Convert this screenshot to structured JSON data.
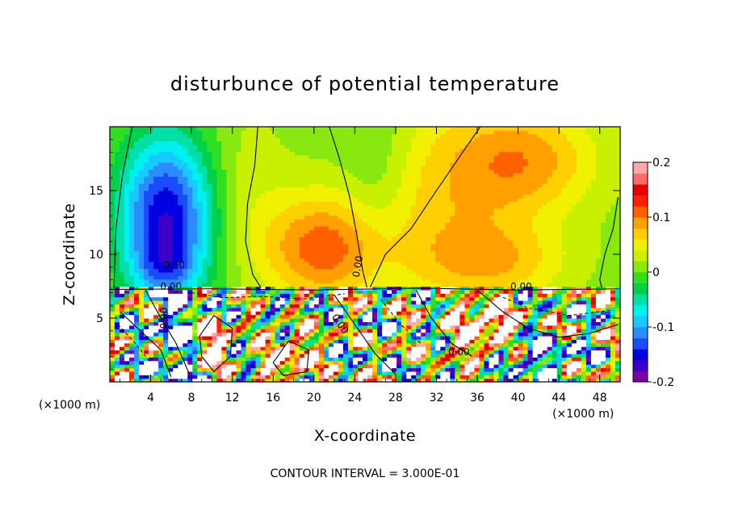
{
  "chart_data": {
    "type": "heatmap",
    "title": "disturbunce of potential temperature",
    "xlabel": "X-coordinate",
    "ylabel": "Z-coordinate",
    "x_unit_note": "(×1000 m)",
    "x_unit_note_right": "(×1000 m)",
    "xlim": [
      0,
      50
    ],
    "ylim": [
      0,
      20
    ],
    "x_ticks": [
      "4",
      "8",
      "12",
      "16",
      "20",
      "24",
      "28",
      "32",
      "36",
      "40",
      "44",
      "48"
    ],
    "x_tick_values": [
      4,
      8,
      12,
      16,
      20,
      24,
      28,
      32,
      36,
      40,
      44,
      48
    ],
    "y_ticks": [
      "5",
      "10",
      "15"
    ],
    "y_tick_values": [
      5,
      10,
      15
    ],
    "colorbar": {
      "min": -0.2,
      "max": 0.2,
      "ticks": [
        "-0.2",
        "-0.1",
        "0",
        "0.1",
        "0.2"
      ],
      "tick_values": [
        -0.2,
        -0.1,
        0,
        0.1,
        0.2
      ]
    },
    "contour_labels": [
      "0.00",
      "0.00",
      "0.00",
      "0.00",
      "0.00",
      "0.00",
      "0.00"
    ],
    "contour_interval_note": "CONTOUR INTERVAL = 3.000E-01",
    "grid": false
  },
  "colors": {
    "palette": [
      "#7a00a8",
      "#3a00c8",
      "#0000e0",
      "#1a4cff",
      "#2c8cff",
      "#18c8ff",
      "#00f0f0",
      "#00e0a8",
      "#00d04a",
      "#30e020",
      "#88e810",
      "#c8f000",
      "#f0f000",
      "#ffd000",
      "#ffa000",
      "#ff6000",
      "#ff2000",
      "#e80000",
      "#ff6a6a",
      "#ffa8a8"
    ]
  }
}
